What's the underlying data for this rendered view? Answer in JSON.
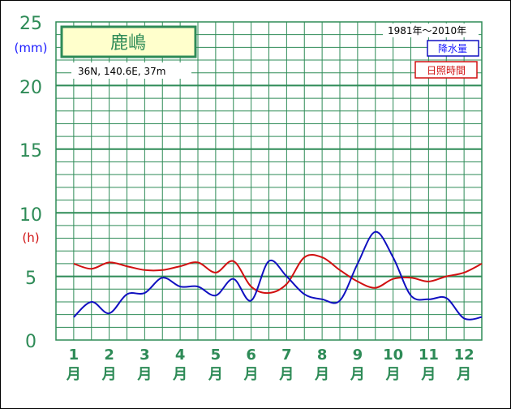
{
  "chart_data": {
    "type": "line",
    "station": "鹿嶋",
    "location": "36N, 140.6E, 37m",
    "period": "1981年〜2010年",
    "units": {
      "precip": "(mm)",
      "sun": "(h)"
    },
    "yticks": [
      "0",
      "5",
      "10",
      "15",
      "20",
      "25"
    ],
    "ylim": [
      0,
      25
    ],
    "month_numbers": [
      "1",
      "2",
      "3",
      "4",
      "5",
      "6",
      "7",
      "8",
      "9",
      "10",
      "11",
      "12"
    ],
    "month_unit": "月",
    "grid": true,
    "legend_position": "top-right",
    "x": [
      1.0,
      1.5,
      2.0,
      2.5,
      3.0,
      3.5,
      4.0,
      4.5,
      5.0,
      5.5,
      6.0,
      6.5,
      7.0,
      7.5,
      8.0,
      8.5,
      9.0,
      9.5,
      10.0,
      10.5,
      11.0,
      11.5,
      12.0,
      12.5
    ],
    "series": [
      {
        "name": "降水量",
        "color": "#1010c0",
        "values": [
          1.8,
          3.0,
          2.1,
          3.6,
          3.7,
          4.9,
          4.2,
          4.2,
          3.5,
          4.8,
          3.1,
          6.2,
          5.0,
          3.6,
          3.2,
          3.1,
          6.0,
          8.5,
          6.5,
          3.5,
          3.2,
          3.3,
          1.7,
          1.8
        ]
      },
      {
        "name": "日照時間",
        "color": "#d01010",
        "values": [
          6.0,
          5.6,
          6.1,
          5.8,
          5.5,
          5.5,
          5.8,
          6.1,
          5.3,
          6.2,
          4.2,
          3.7,
          4.4,
          6.5,
          6.5,
          5.5,
          4.6,
          4.1,
          4.8,
          4.9,
          4.6,
          5.0,
          5.3,
          6.0
        ]
      }
    ]
  }
}
